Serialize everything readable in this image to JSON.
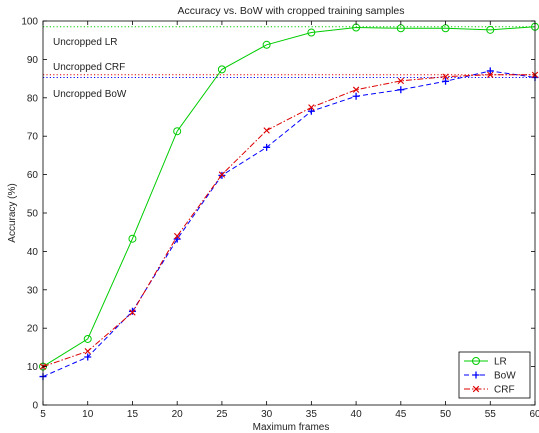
{
  "chart_data": {
    "type": "line",
    "title": "Accuracy vs. BoW with cropped training samples",
    "xlabel": "Maximum frames",
    "ylabel": "Accuracy (%)",
    "x": [
      5,
      10,
      15,
      20,
      25,
      30,
      35,
      40,
      45,
      50,
      55,
      60
    ],
    "xlim": [
      5,
      60
    ],
    "ylim": [
      0,
      100
    ],
    "xticks": [
      5,
      10,
      15,
      20,
      25,
      30,
      35,
      40,
      45,
      50,
      55,
      60
    ],
    "yticks": [
      0,
      10,
      20,
      30,
      40,
      50,
      60,
      70,
      80,
      90,
      100
    ],
    "grid": false,
    "legend_position": "bottom-right",
    "series": [
      {
        "name": "LR",
        "color": "#00cc00",
        "dash": "solid",
        "marker": "circle",
        "values": [
          10.0,
          17.2,
          43.3,
          71.3,
          87.4,
          93.8,
          97.0,
          98.3,
          98.1,
          98.1,
          97.7,
          98.5
        ]
      },
      {
        "name": "BoW",
        "color": "#0000ff",
        "dash": "dashed",
        "marker": "plus",
        "values": [
          7.4,
          12.5,
          24.4,
          43.2,
          59.8,
          67.1,
          76.5,
          80.4,
          82.1,
          84.3,
          87.0,
          85.3
        ]
      },
      {
        "name": "CRF",
        "color": "#dd0000",
        "dash": "dashdot",
        "marker": "x",
        "values": [
          10.0,
          14.0,
          24.1,
          44.0,
          60.0,
          71.5,
          77.5,
          82.1,
          84.4,
          85.5,
          86.0,
          86.0
        ]
      }
    ],
    "reference_lines": [
      {
        "label": "Uncropped LR",
        "value": 98.5,
        "color": "#00cc00"
      },
      {
        "label": "Uncropped CRF",
        "value": 86.0,
        "color": "#dd0000"
      },
      {
        "label": "Uncropped BoW",
        "value": 85.3,
        "color": "#0000ff"
      }
    ]
  }
}
